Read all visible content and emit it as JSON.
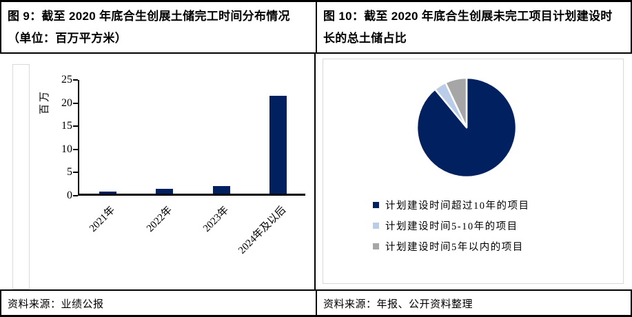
{
  "figures": [
    {
      "title": "图 9：截至 2020 年底合生创展土储完工时间分布情况（单位：百万平方米）",
      "source": "资料来源：业绩公报"
    },
    {
      "title": "图 10：截至 2020 年底合生创展未完工项目计划建设时长的总土储占比",
      "source": "资料来源：年报、公开资料整理"
    }
  ],
  "colors": {
    "navy": "#002060",
    "light_blue": "#b9cce8",
    "gray": "#a6a6a6",
    "frame_gray": "#d9d9d9",
    "rule_black": "#000000"
  },
  "chart_data": [
    {
      "type": "bar",
      "title": "截至 2020 年底合生创展土储完工时间分布情况（单位：百万平方米）",
      "categories": [
        "2021年",
        "2022年",
        "2023年",
        "2024年及以后"
      ],
      "values": [
        0.4,
        1.0,
        1.7,
        21.2
      ],
      "xlabel": "",
      "ylabel": "百万",
      "ylim": [
        0,
        25
      ],
      "yticks": [
        0,
        5,
        10,
        15,
        20,
        25
      ],
      "bar_color": "#002060",
      "grid": false,
      "x_tick_rotation_deg": 45,
      "legend": "none"
    },
    {
      "type": "pie",
      "title": "截至 2020 年底合生创展未完工项目计划建设时长的总土储占比",
      "slices": [
        {
          "label": "计划建设时间超过10年的项目",
          "value": 89,
          "color": "#002060"
        },
        {
          "label": "计划建设时间5-10年的项目",
          "value": 4,
          "color": "#b9cce8"
        },
        {
          "label": "计划建设时间5年以内的项目",
          "value": 7,
          "color": "#a6a6a6"
        }
      ],
      "start_angle_deg": 0,
      "direction": "clockwise",
      "legend_position": "bottom"
    }
  ]
}
